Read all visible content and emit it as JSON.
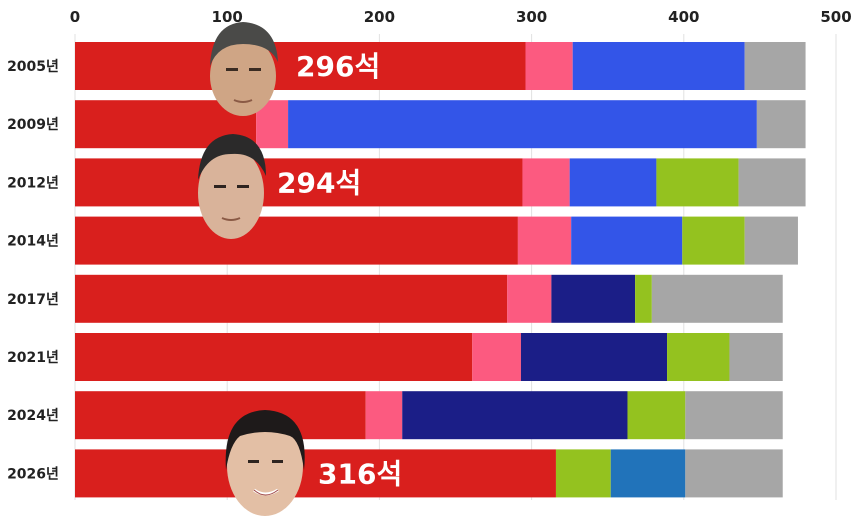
{
  "chart_data": {
    "type": "bar",
    "orientation": "horizontal",
    "stacked": true,
    "categories": [
      "2005년",
      "2009년",
      "2012년",
      "2014년",
      "2017년",
      "2021년",
      "2024년",
      "2026년"
    ],
    "x_ticks": [
      "0",
      "100",
      "200",
      "300",
      "400",
      "500"
    ],
    "xlim": [
      0,
      500
    ],
    "grid": true,
    "segments": [
      [
        {
          "value": 296,
          "color": "#d91f1d"
        },
        {
          "value": 31,
          "color": "#fc5a80"
        },
        {
          "value": 113,
          "color": "#3355e8"
        },
        {
          "value": 40,
          "color": "#a6a6a6"
        }
      ],
      [
        {
          "value": 119,
          "color": "#d91f1d"
        },
        {
          "value": 21,
          "color": "#fc5a80"
        },
        {
          "value": 308,
          "color": "#3355e8"
        },
        {
          "value": 32,
          "color": "#a6a6a6"
        }
      ],
      [
        {
          "value": 294,
          "color": "#d91f1d"
        },
        {
          "value": 31,
          "color": "#fc5a80"
        },
        {
          "value": 57,
          "color": "#3355e8"
        },
        {
          "value": 54,
          "color": "#94c21f"
        },
        {
          "value": 44,
          "color": "#a6a6a6"
        }
      ],
      [
        {
          "value": 291,
          "color": "#d91f1d"
        },
        {
          "value": 35,
          "color": "#fc5a80"
        },
        {
          "value": 73,
          "color": "#3355e8"
        },
        {
          "value": 41,
          "color": "#94c21f"
        },
        {
          "value": 35,
          "color": "#a6a6a6"
        }
      ],
      [
        {
          "value": 284,
          "color": "#d91f1d"
        },
        {
          "value": 29,
          "color": "#fc5a80"
        },
        {
          "value": 55,
          "color": "#1b1e87"
        },
        {
          "value": 11,
          "color": "#94c21f"
        },
        {
          "value": 86,
          "color": "#a6a6a6"
        }
      ],
      [
        {
          "value": 261,
          "color": "#d91f1d"
        },
        {
          "value": 32,
          "color": "#fc5a80"
        },
        {
          "value": 96,
          "color": "#1b1e87"
        },
        {
          "value": 41,
          "color": "#94c21f"
        },
        {
          "value": 35,
          "color": "#a6a6a6"
        }
      ],
      [
        {
          "value": 191,
          "color": "#d91f1d"
        },
        {
          "value": 24,
          "color": "#fc5a80"
        },
        {
          "value": 148,
          "color": "#1b1e87"
        },
        {
          "value": 38,
          "color": "#94c21f"
        },
        {
          "value": 64,
          "color": "#a6a6a6"
        }
      ],
      [
        {
          "value": 316,
          "color": "#d91f1d"
        },
        {
          "value": 36,
          "color": "#94c21f"
        },
        {
          "value": 49,
          "color": "#2173ba"
        },
        {
          "value": 64,
          "color": "#a6a6a6"
        }
      ]
    ],
    "annotations": [
      {
        "category_index": 0,
        "text": "296석"
      },
      {
        "category_index": 2,
        "text": "294석"
      },
      {
        "category_index": 7,
        "text": "316석"
      }
    ]
  }
}
